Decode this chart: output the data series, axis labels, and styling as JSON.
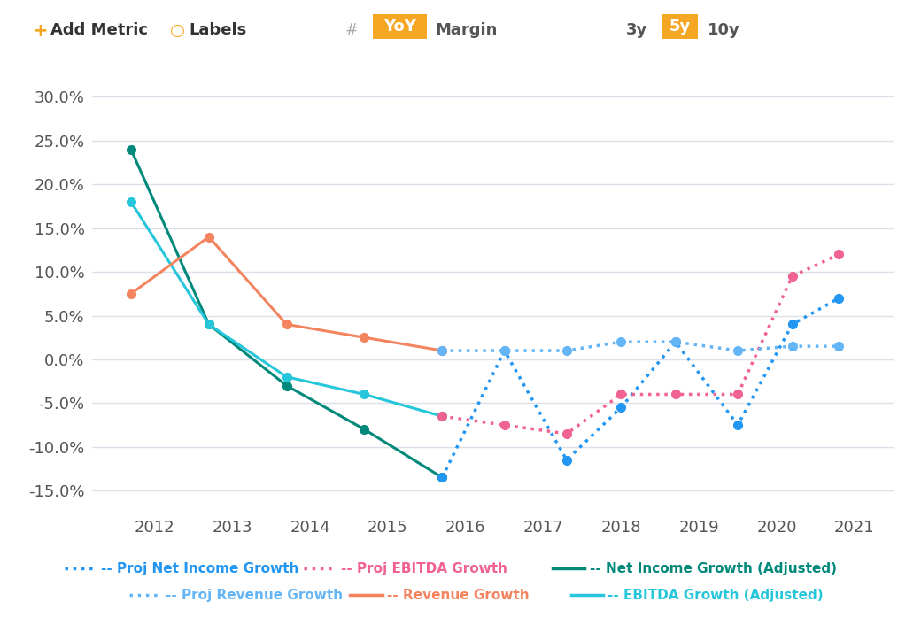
{
  "background_color": "#ffffff",
  "plot_bg_color": "#ffffff",
  "grid_color": "#dde0e8",
  "series": {
    "net_income_growth": {
      "label": "Net Income Growth (Adjusted)",
      "color": "#00897b",
      "style": "solid",
      "marker": "o",
      "x": [
        2011.7,
        2012.7,
        2013.7,
        2014.7,
        2015.7
      ],
      "y": [
        0.24,
        0.04,
        -0.03,
        -0.08,
        -0.135
      ]
    },
    "ebitda_growth": {
      "label": "EBITDA Growth (Adjusted)",
      "color": "#26c6da",
      "style": "solid",
      "marker": "o",
      "x": [
        2011.7,
        2012.7,
        2013.7,
        2014.7,
        2015.7
      ],
      "y": [
        0.18,
        0.04,
        -0.02,
        -0.04,
        -0.065
      ]
    },
    "revenue_growth": {
      "label": "Revenue Growth",
      "color": "#f4845f",
      "style": "solid",
      "marker": "o",
      "x": [
        2011.7,
        2012.7,
        2013.7,
        2014.7,
        2015.7
      ],
      "y": [
        0.075,
        0.14,
        0.04,
        0.025,
        0.01
      ]
    },
    "proj_net_income": {
      "label": "Proj Net Income Growth",
      "color": "#2196f3",
      "style": "dotted",
      "marker": "o",
      "x": [
        2015.7,
        2016.5,
        2017.3,
        2018.0,
        2018.7,
        2019.5,
        2020.2,
        2020.8
      ],
      "y": [
        -0.135,
        0.01,
        -0.115,
        -0.055,
        0.02,
        -0.075,
        0.04,
        0.07
      ]
    },
    "proj_ebitda": {
      "label": "Proj EBITDA Growth",
      "color": "#f06292",
      "style": "dotted",
      "marker": "o",
      "x": [
        2015.7,
        2016.5,
        2017.3,
        2018.0,
        2018.7,
        2019.5,
        2020.2,
        2020.8
      ],
      "y": [
        -0.065,
        -0.075,
        -0.085,
        -0.04,
        -0.04,
        -0.04,
        0.095,
        0.12
      ]
    },
    "proj_revenue": {
      "label": "Proj Revenue Growth",
      "color": "#64b5f6",
      "style": "dotted",
      "marker": "o",
      "x": [
        2015.7,
        2016.5,
        2017.3,
        2018.0,
        2018.7,
        2019.5,
        2020.2,
        2020.8
      ],
      "y": [
        0.01,
        0.01,
        0.01,
        0.02,
        0.02,
        0.01,
        0.015,
        0.015
      ]
    }
  },
  "yticks": [
    -0.15,
    -0.1,
    -0.05,
    0.0,
    0.05,
    0.1,
    0.15,
    0.2,
    0.25,
    0.3
  ],
  "ytick_labels": [
    "-15.0%",
    "-10.0%",
    "-5.0%",
    "0.0%",
    "5.0%",
    "10.0%",
    "15.0%",
    "20.0%",
    "25.0%",
    "30.0%"
  ],
  "ylim": [
    -0.175,
    0.325
  ],
  "xlim": [
    2011.2,
    2021.5
  ],
  "xticks": [
    2012,
    2013,
    2014,
    2015,
    2016,
    2017,
    2018,
    2019,
    2020,
    2021
  ],
  "legend_line1": [
    {
      "label": "Proj Net Income Growth",
      "color": "#2196f3",
      "style": "dotted"
    },
    {
      "label": "Proj EBITDA Growth",
      "color": "#f06292",
      "style": "dotted"
    },
    {
      "label": "Net Income Growth (Adjusted)",
      "color": "#00897b",
      "style": "solid"
    }
  ],
  "legend_line2": [
    {
      "label": "Proj Revenue Growth",
      "color": "#64b5f6",
      "style": "dotted"
    },
    {
      "label": "Revenue Growth",
      "color": "#f4845f",
      "style": "solid"
    },
    {
      "label": "EBITDA Growth (Adjusted)",
      "color": "#26c6da",
      "style": "solid"
    }
  ]
}
